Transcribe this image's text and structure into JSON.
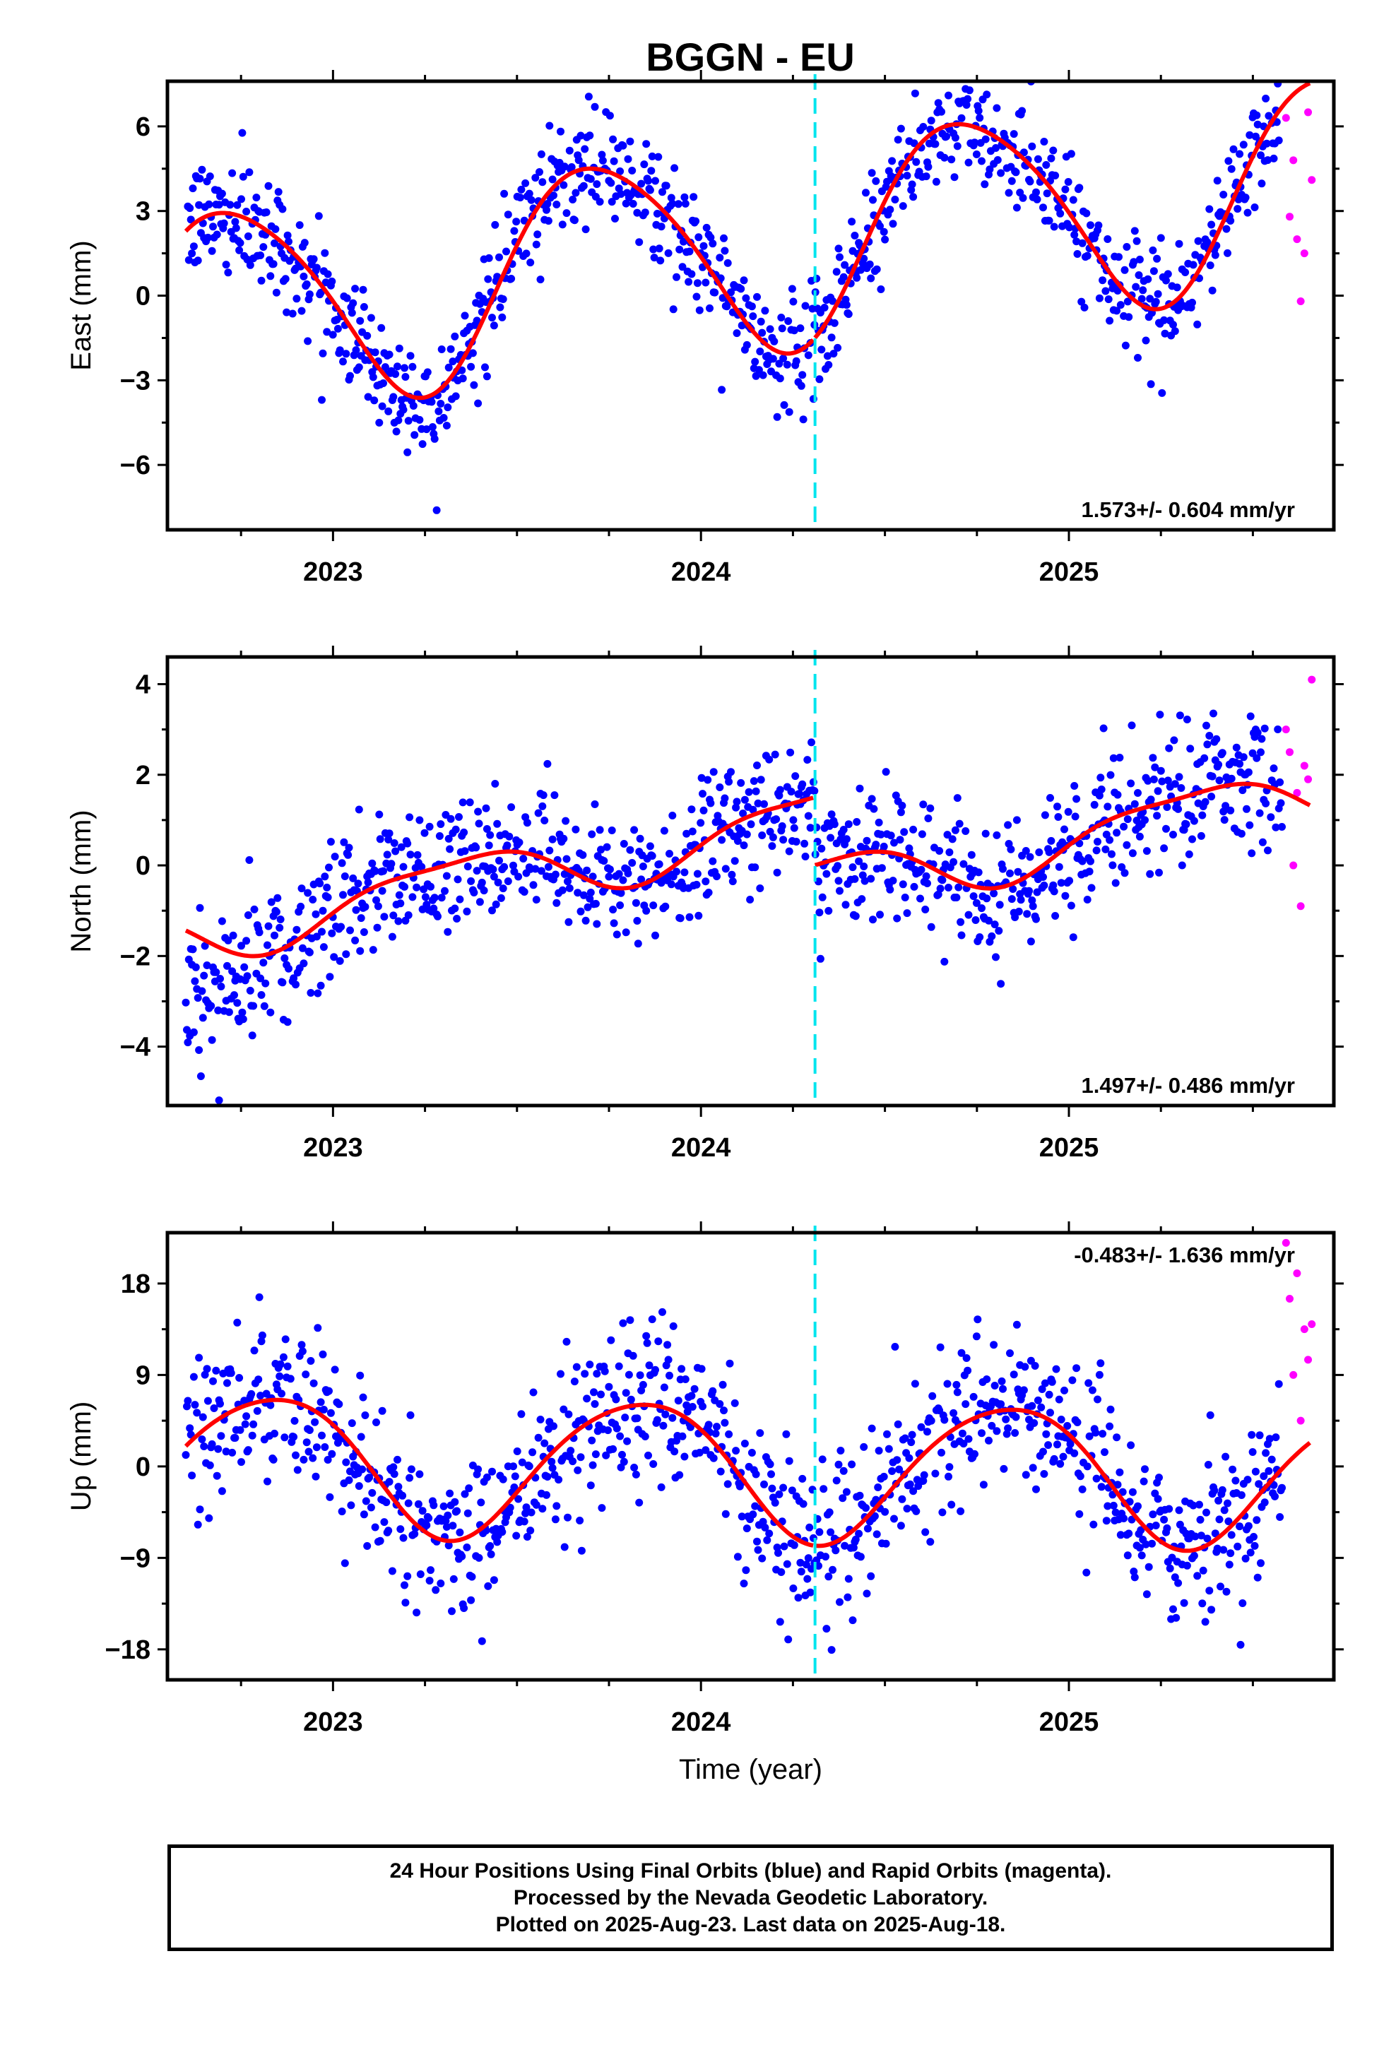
{
  "title": "BGGN - EU",
  "colors": {
    "final": "#0000ff",
    "rapid": "#ff00ff",
    "model": "#ff0000",
    "step": "#00e5ee"
  },
  "chart_data": [
    {
      "type": "scatter",
      "ylabel": "East (mm)",
      "xlabel": "",
      "xlim": [
        2022.55,
        2025.72
      ],
      "ylim": [
        -8.3,
        7.6
      ],
      "yticks": [
        6,
        3,
        0,
        -3,
        -6
      ],
      "ytick_labels": [
        "6",
        "3",
        "0",
        "−3",
        "−6"
      ],
      "xticks": [
        2023,
        2024,
        2025
      ],
      "xtick_labels": [
        "2023",
        "2024",
        "2025"
      ],
      "rate_text": "1.573+/- 0.604 mm/yr",
      "rate_position": "bottom-right",
      "step_epoch": 2024.31,
      "model": {
        "trend": 1.573,
        "offset": 0.0,
        "step": 0.0,
        "annual_sin": -3.6,
        "annual_cos": -0.6,
        "semi_sin": 0.2,
        "semi_cos": 0.4
      },
      "final_scatter_sd": 1.0,
      "rapid_points": {
        "x": [
          2025.59,
          2025.6,
          2025.61,
          2025.62,
          2025.63,
          2025.64,
          2025.65,
          2025.66
        ],
        "y": [
          6.3,
          2.8,
          4.8,
          2.0,
          -0.2,
          1.5,
          6.5,
          4.1
        ]
      }
    },
    {
      "type": "scatter",
      "ylabel": "North (mm)",
      "xlabel": "",
      "xlim": [
        2022.55,
        2025.72
      ],
      "ylim": [
        -5.3,
        4.6
      ],
      "yticks": [
        4,
        2,
        0,
        -2,
        -4
      ],
      "ytick_labels": [
        "4",
        "2",
        "0",
        "−2",
        "−4"
      ],
      "xticks": [
        2023,
        2024,
        2025
      ],
      "xtick_labels": [
        "2023",
        "2024",
        "2025"
      ],
      "rate_text": "1.497+/- 0.486 mm/yr",
      "rate_position": "bottom-right",
      "step_epoch": 2024.31,
      "model": {
        "trend": 1.497,
        "offset": -0.9,
        "step": -1.5,
        "annual_sin": 0.55,
        "annual_cos": -0.3,
        "semi_sin": 0.1,
        "semi_cos": 0.15
      },
      "final_scatter_sd": 0.75,
      "rapid_points": {
        "x": [
          2025.59,
          2025.6,
          2025.61,
          2025.62,
          2025.63,
          2025.64,
          2025.65,
          2025.66
        ],
        "y": [
          3.0,
          2.5,
          0.0,
          1.6,
          -0.9,
          2.2,
          1.9,
          4.1
        ]
      }
    },
    {
      "type": "scatter",
      "ylabel": "Up (mm)",
      "xlabel": "Time (year)",
      "xlim": [
        2022.55,
        2025.72
      ],
      "ylim": [
        -21.0,
        23.0
      ],
      "yticks": [
        18,
        9,
        0,
        -9,
        -18
      ],
      "ytick_labels": [
        "18",
        "9",
        "0",
        "−9",
        "−18"
      ],
      "xticks": [
        2023,
        2024,
        2025
      ],
      "xtick_labels": [
        "2023",
        "2024",
        "2025"
      ],
      "rate_text": "-0.483+/- 1.636 mm/yr",
      "rate_position": "top-right",
      "step_epoch": 2024.31,
      "model": {
        "trend": -0.483,
        "offset": 0.3,
        "step": 0.0,
        "annual_sin": -6.0,
        "annual_cos": 3.2,
        "semi_sin": 0.4,
        "semi_cos": 0.6
      },
      "final_scatter_sd": 4.0,
      "rapid_points": {
        "x": [
          2025.59,
          2025.6,
          2025.61,
          2025.62,
          2025.63,
          2025.64,
          2025.65,
          2025.66
        ],
        "y": [
          22.0,
          16.5,
          9.0,
          19.0,
          4.5,
          13.5,
          10.5,
          14.0
        ]
      }
    }
  ],
  "footer": {
    "line1": "24 Hour Positions Using Final Orbits (blue) and Rapid Orbits (magenta).",
    "line2": "Processed by the Nevada Geodetic Laboratory.",
    "line3": "Plotted on 2025-Aug-23. Last data on 2025-Aug-18."
  }
}
